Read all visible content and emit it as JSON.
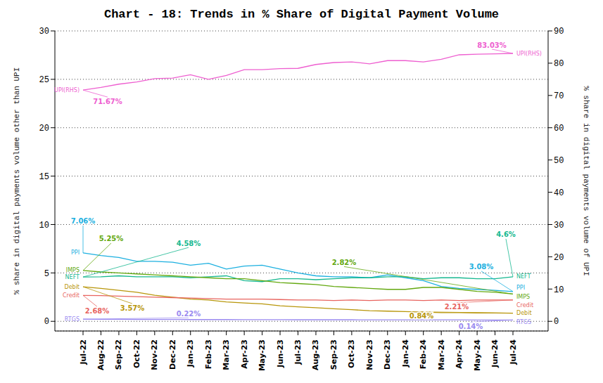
{
  "chart_data": {
    "type": "line",
    "title": "Chart - 18: Trends in % Share of Digital Payment Volume",
    "y_label": "% share in digital payments volume other than UPI",
    "y2_label": "% share in digital payments volume of UPI",
    "categories": [
      "Jul-22",
      "Aug-22",
      "Sep-22",
      "Oct-22",
      "Nov-22",
      "Dec-22",
      "Jan-23",
      "Feb-23",
      "Mar-23",
      "Apr-23",
      "May-23",
      "Jun-23",
      "Jul-23",
      "Aug-23",
      "Sep-23",
      "Oct-23",
      "Nov-23",
      "Dec-23",
      "Jan-24",
      "Feb-24",
      "Mar-24",
      "Apr-24",
      "May-24",
      "Jun-24",
      "Jul-24"
    ],
    "ylim": [
      -1,
      30
    ],
    "yticks": [
      0,
      5,
      10,
      15,
      20,
      25,
      30
    ],
    "y2lim": [
      -3,
      90
    ],
    "y2ticks": [
      0,
      10,
      20,
      30,
      40,
      50,
      60,
      70,
      80,
      90
    ],
    "grid": true,
    "series": [
      {
        "name": "UPI(RHS)",
        "color": "#ee5fd0",
        "axis": "y2",
        "values": [
          71.67,
          72.5,
          73.5,
          74.2,
          75.2,
          75.4,
          76.4,
          75,
          76.2,
          78,
          78,
          78.3,
          78.4,
          79.6,
          80.2,
          80.4,
          79.8,
          80.8,
          80.8,
          80.4,
          81.2,
          82.6,
          82.8,
          82.9,
          83.03
        ],
        "value_labels": [
          "71.67%",
          null,
          null,
          null,
          null,
          null,
          null,
          null,
          null,
          null,
          null,
          null,
          null,
          null,
          null,
          null,
          null,
          null,
          null,
          null,
          null,
          null,
          null,
          null,
          "83.03%"
        ]
      },
      {
        "name": "PPI",
        "color": "#1cb0e0",
        "values": [
          7.06,
          6.8,
          6.6,
          6.2,
          6.2,
          6.1,
          5.8,
          6.0,
          5.4,
          5.7,
          5.8,
          5.4,
          5.0,
          4.7,
          4.6,
          4.6,
          4.5,
          4.8,
          4.5,
          4.2,
          3.6,
          3.4,
          3.3,
          3.2,
          3.08
        ],
        "value_labels": [
          "7.06%",
          null,
          null,
          null,
          null,
          null,
          null,
          null,
          null,
          null,
          null,
          null,
          null,
          null,
          null,
          null,
          null,
          null,
          null,
          null,
          null,
          null,
          null,
          null,
          "3.08%"
        ]
      },
      {
        "name": "NEFT",
        "color": "#17b890",
        "values": [
          4.58,
          4.6,
          4.7,
          4.6,
          4.6,
          4.6,
          4.5,
          4.6,
          4.7,
          4.2,
          4.1,
          4.4,
          4.4,
          4.3,
          4.4,
          4.5,
          4.5,
          4.6,
          4.6,
          4.4,
          4.5,
          4.5,
          4.4,
          4.4,
          4.6
        ],
        "value_labels": [
          "4.58%",
          null,
          null,
          null,
          null,
          null,
          null,
          null,
          null,
          null,
          null,
          null,
          null,
          null,
          null,
          null,
          null,
          null,
          null,
          null,
          null,
          null,
          null,
          null,
          "4.6%"
        ]
      },
      {
        "name": "IMPS",
        "color": "#63a80f",
        "values": [
          5.25,
          5.1,
          5.0,
          4.9,
          4.8,
          4.7,
          4.6,
          4.5,
          4.4,
          4.4,
          4.2,
          4.0,
          3.9,
          3.8,
          3.6,
          3.5,
          3.4,
          3.3,
          3.3,
          3.5,
          3.5,
          3.3,
          3.1,
          3.0,
          2.82
        ],
        "value_labels": [
          "5.25%",
          null,
          null,
          null,
          null,
          null,
          null,
          null,
          null,
          null,
          null,
          null,
          null,
          null,
          null,
          null,
          null,
          null,
          null,
          null,
          null,
          null,
          null,
          null,
          "2.82%"
        ]
      },
      {
        "name": "Debit",
        "color": "#b8960a",
        "values": [
          3.57,
          3.4,
          3.2,
          3.0,
          2.7,
          2.5,
          2.3,
          2.2,
          2.0,
          1.9,
          1.8,
          1.6,
          1.5,
          1.4,
          1.3,
          1.2,
          1.1,
          1.05,
          1.0,
          0.95,
          0.9,
          0.9,
          0.87,
          0.86,
          0.84
        ],
        "value_labels": [
          "3.57%",
          null,
          null,
          null,
          null,
          null,
          null,
          null,
          null,
          null,
          null,
          null,
          null,
          null,
          null,
          null,
          null,
          null,
          null,
          null,
          null,
          null,
          null,
          null,
          "0.84%"
        ]
      },
      {
        "name": "Credit",
        "color": "#e8645f",
        "values": [
          2.68,
          2.65,
          2.6,
          2.55,
          2.5,
          2.45,
          2.4,
          2.35,
          2.3,
          2.3,
          2.3,
          2.25,
          2.2,
          2.2,
          2.15,
          2.2,
          2.15,
          2.2,
          2.2,
          2.15,
          2.2,
          2.15,
          2.2,
          2.2,
          2.21
        ],
        "value_labels": [
          "2.68%",
          null,
          null,
          null,
          null,
          null,
          null,
          null,
          null,
          null,
          null,
          null,
          null,
          null,
          null,
          null,
          null,
          null,
          null,
          null,
          null,
          null,
          null,
          null,
          "2.21%"
        ]
      },
      {
        "name": "RTGS",
        "color": "#9a8af0",
        "values": [
          0.22,
          0.2,
          0.2,
          0.19,
          0.19,
          0.19,
          0.18,
          0.18,
          0.18,
          0.17,
          0.17,
          0.17,
          0.16,
          0.16,
          0.16,
          0.16,
          0.15,
          0.15,
          0.15,
          0.15,
          0.15,
          0.15,
          0.14,
          0.14,
          0.14
        ],
        "value_labels": [
          "0.22%",
          null,
          null,
          null,
          null,
          null,
          null,
          null,
          null,
          null,
          null,
          null,
          null,
          null,
          null,
          null,
          null,
          null,
          null,
          null,
          null,
          null,
          null,
          null,
          "0.14%"
        ]
      }
    ]
  }
}
